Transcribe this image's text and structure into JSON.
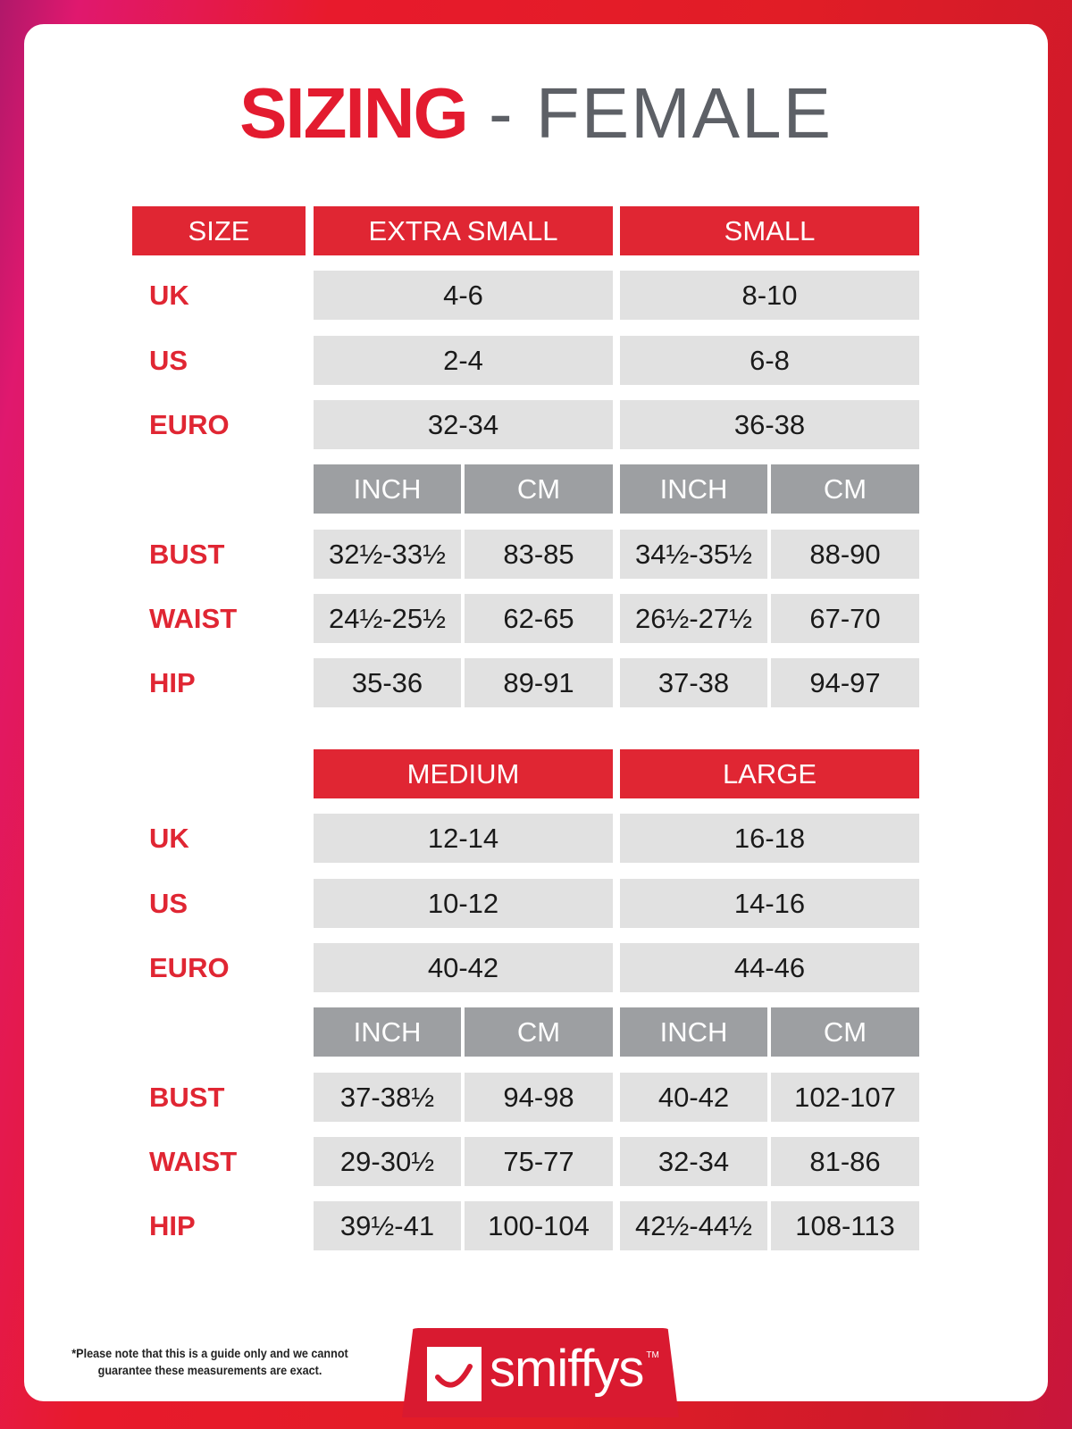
{
  "title": {
    "bold": "SIZING",
    "rest": " - FEMALE"
  },
  "size_header": "SIZE",
  "row_labels": {
    "uk": "UK",
    "us": "US",
    "euro": "EURO",
    "bust": "BUST",
    "waist": "WAIST",
    "hip": "HIP"
  },
  "units": {
    "inch": "INCH",
    "cm": "CM"
  },
  "blocks": [
    {
      "show_size_header": true,
      "sizes": [
        {
          "name": "EXTRA SMALL",
          "uk": "4-6",
          "us": "2-4",
          "euro": "32-34",
          "bust": [
            "32½-33½",
            "83-85"
          ],
          "waist": [
            "24½-25½",
            "62-65"
          ],
          "hip": [
            "35-36",
            "89-91"
          ]
        },
        {
          "name": "SMALL",
          "uk": "8-10",
          "us": "6-8",
          "euro": "36-38",
          "bust": [
            "34½-35½",
            "88-90"
          ],
          "waist": [
            "26½-27½",
            "67-70"
          ],
          "hip": [
            "37-38",
            "94-97"
          ]
        }
      ]
    },
    {
      "show_size_header": false,
      "sizes": [
        {
          "name": "MEDIUM",
          "uk": "12-14",
          "us": "10-12",
          "euro": "40-42",
          "bust": [
            "37-38½",
            "94-98"
          ],
          "waist": [
            "29-30½",
            "75-77"
          ],
          "hip": [
            "39½-41",
            "100-104"
          ]
        },
        {
          "name": "LARGE",
          "uk": "16-18",
          "us": "14-16",
          "euro": "44-46",
          "bust": [
            "40-42",
            "102-107"
          ],
          "waist": [
            "32-34",
            "81-86"
          ],
          "hip": [
            "42½-44½",
            "108-113"
          ]
        }
      ]
    }
  ],
  "footer": {
    "note_line1": "*Please note that this is a guide only and we cannot",
    "note_line2": "guarantee these measurements are exact.",
    "logo_text": "smiffys",
    "logo_tm": "TM"
  },
  "colors": {
    "brand_red": "#e02633",
    "unit_gray": "#9d9fa2",
    "cell_gray": "#e1e1e1",
    "title_gray": "#5d6066"
  }
}
